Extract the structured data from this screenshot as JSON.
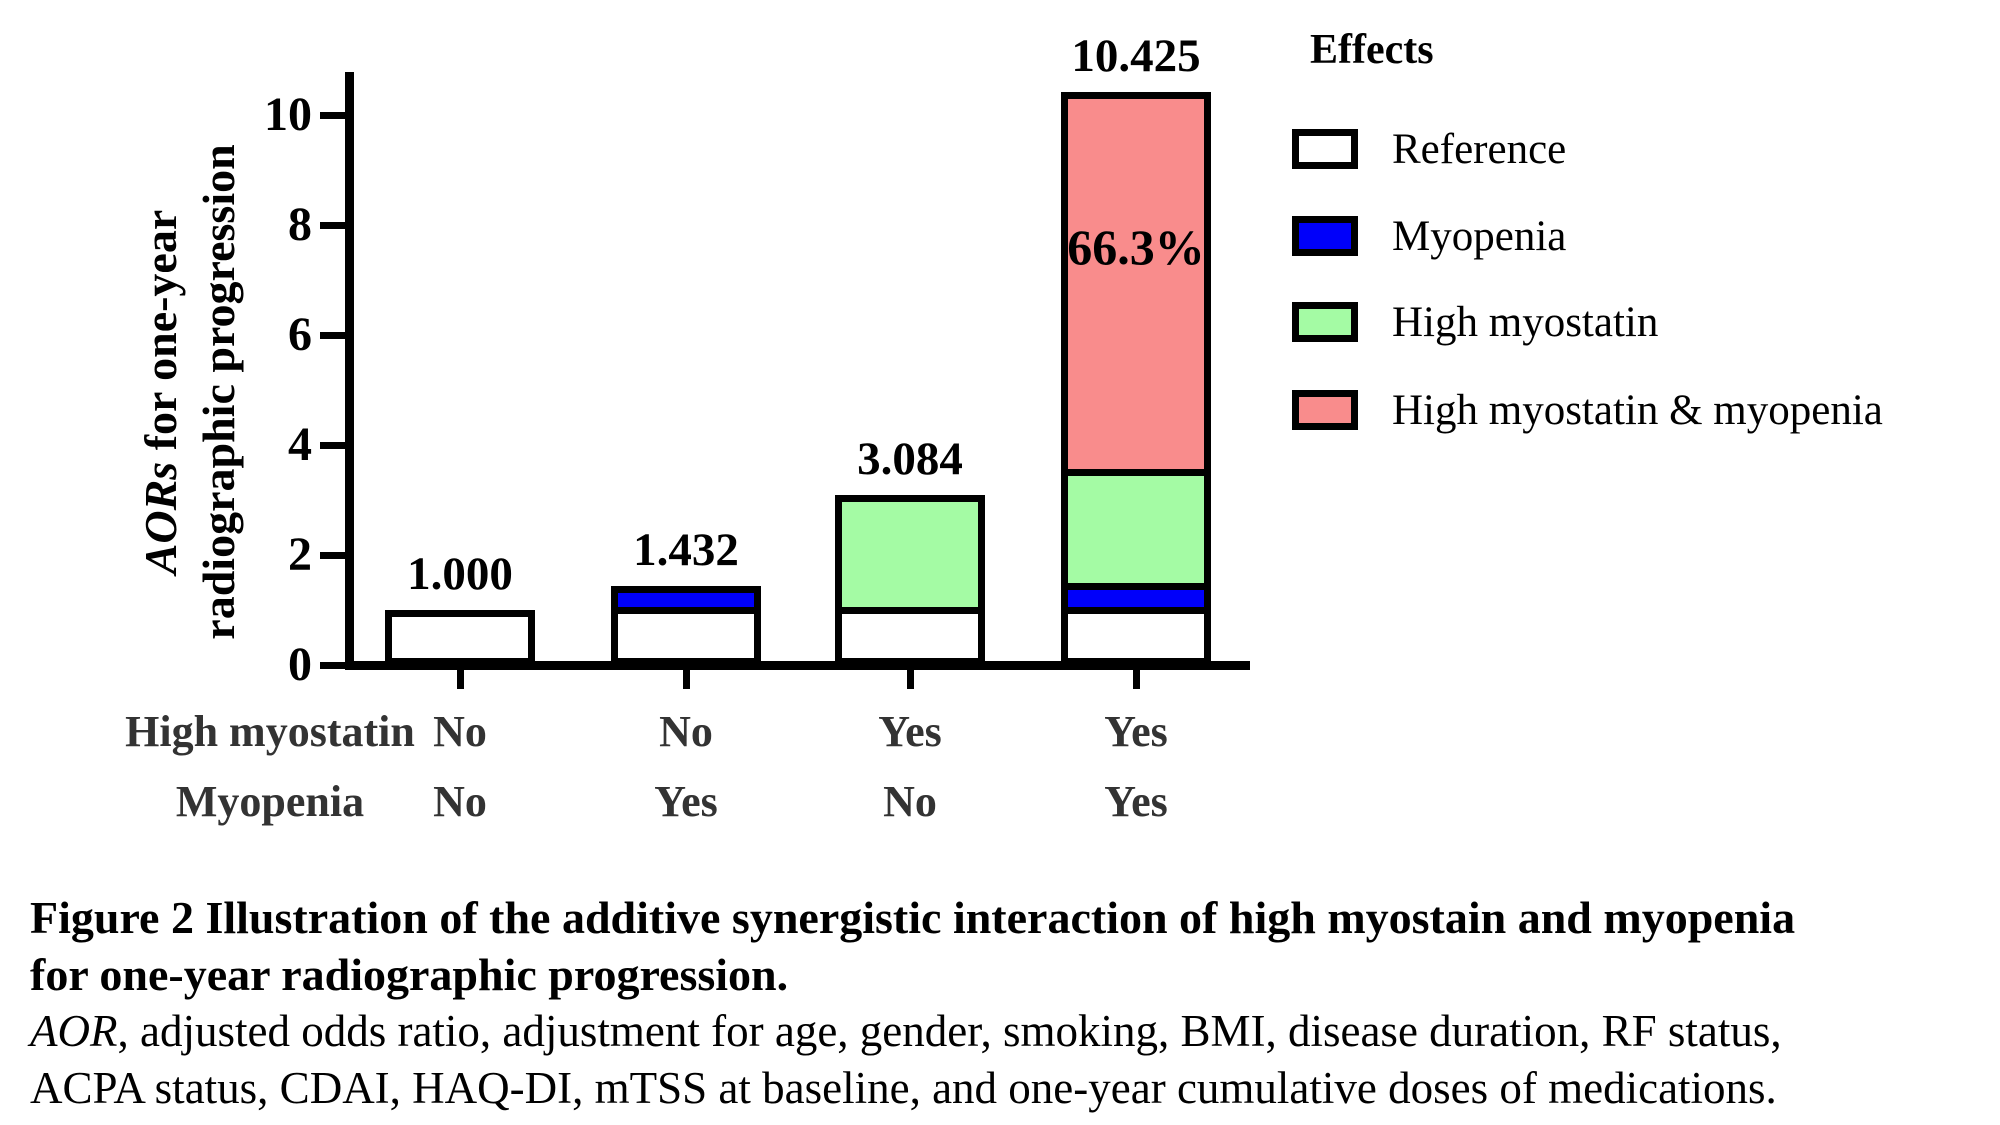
{
  "plot": {
    "ylabel_line1_italic": "AORs",
    "ylabel_line1_rest": " for one-year",
    "ylabel_line2": "radiographic progression"
  },
  "legend": {
    "title": "Effects",
    "items": [
      {
        "label": "Reference",
        "color": "#ffffff"
      },
      {
        "label": "Myopenia",
        "color": "#0000fa"
      },
      {
        "label": "High myostatin",
        "color": "#a4fba4"
      },
      {
        "label": "High myostatin & myopenia",
        "color": "#f98c8c"
      }
    ]
  },
  "chart_data": {
    "type": "bar",
    "stacked": true,
    "title": "",
    "xlabel": "",
    "ylabel": "AORs for one-year radiographic progression",
    "ylim": [
      0,
      11
    ],
    "yticks": [
      0,
      2,
      4,
      6,
      8,
      10
    ],
    "grid": false,
    "legend_position": "right",
    "categories": [
      "High myostatin: No / Myopenia: No",
      "High myostatin: No / Myopenia: Yes",
      "High myostatin: Yes / Myopenia: No",
      "High myostatin: Yes / Myopenia: Yes"
    ],
    "series": [
      {
        "name": "Reference",
        "color": "#ffffff",
        "values": [
          1.0,
          1.0,
          1.0,
          1.0
        ]
      },
      {
        "name": "Myopenia",
        "color": "#0000fa",
        "values": [
          0,
          0.432,
          0,
          0.432
        ]
      },
      {
        "name": "High myostatin",
        "color": "#a4fba4",
        "values": [
          0,
          0,
          2.084,
          2.084
        ]
      },
      {
        "name": "High myostatin & myopenia",
        "color": "#f98c8c",
        "values": [
          0,
          0,
          0,
          6.909
        ]
      }
    ],
    "totals": [
      1.0,
      1.432,
      3.084,
      10.425
    ],
    "bar_value_labels": [
      "1.000",
      "1.432",
      "3.084",
      "10.425"
    ],
    "annotation": {
      "text": "66.3%",
      "bar_index": 3
    },
    "x_rows": [
      {
        "label": "High myostatin",
        "values": [
          "No",
          "No",
          "Yes",
          "Yes"
        ]
      },
      {
        "label": "Myopenia",
        "values": [
          "No",
          "Yes",
          "No",
          "Yes"
        ]
      }
    ]
  },
  "caption": {
    "heading_line1": "Figure 2 Illustration of the additive synergistic interaction of high myostain and myopenia",
    "heading_line2": "for one-year radiographic progression.",
    "note_line1_italic": "AOR",
    "note_line1_rest": ", adjusted odds ratio, adjustment for age, gender, smoking, BMI, disease duration, RF status,",
    "note_line2": "ACPA status, CDAI, HAQ-DI, mTSS at baseline, and one-year cumulative doses of medications."
  }
}
